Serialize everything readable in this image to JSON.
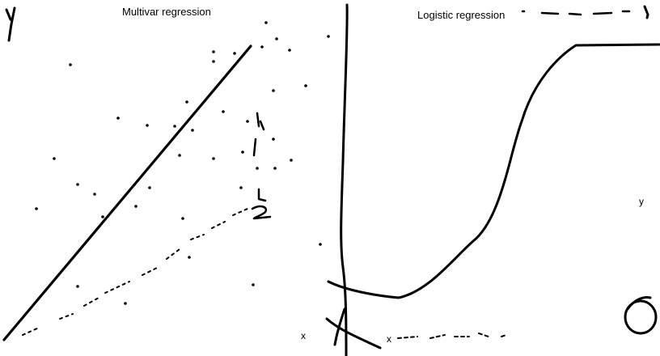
{
  "left_panel": {
    "title": "Multivar regression",
    "x_axis_label": "x"
  },
  "right_panel": {
    "title": "Logistic regression",
    "y_axis_label": "y",
    "x_axis_label": "x"
  },
  "colors": {
    "ink": "#000000",
    "background": "#ffffff"
  }
}
